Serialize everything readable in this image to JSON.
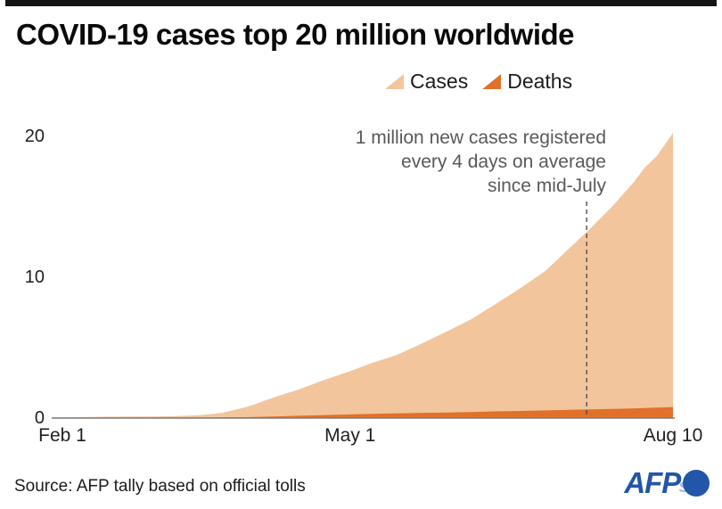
{
  "page": {
    "top_bar_color": "#141414",
    "background": "#ffffff"
  },
  "header": {
    "title": "COVID-19 cases top 20 million worldwide"
  },
  "annotation": {
    "lines": [
      "1 million new cases registered",
      "every 4 days on average",
      "since mid-July"
    ]
  },
  "footer": {
    "source": "Source: AFP tally based on official tolls"
  },
  "logo": {
    "text": "AFP",
    "ghost_text": "s",
    "color": "#2156a8"
  },
  "chart_data": {
    "type": "area",
    "title": "COVID-19 cases top 20 million worldwide",
    "y_unit": "millions",
    "x_unit": "days since Feb 1, 2020",
    "x": [
      0,
      7,
      14,
      21,
      29,
      36,
      43,
      50,
      57,
      60,
      67,
      74,
      81,
      90,
      97,
      104,
      111,
      121,
      128,
      135,
      142,
      151,
      158,
      165,
      172,
      179,
      182,
      186,
      191
    ],
    "series": [
      {
        "name": "Cases",
        "color": "#f2c59c",
        "values": [
          0.012,
          0.035,
          0.069,
          0.078,
          0.088,
          0.107,
          0.17,
          0.34,
          0.72,
          0.93,
          1.5,
          2.0,
          2.6,
          3.3,
          3.9,
          4.4,
          5.1,
          6.2,
          7.0,
          8.0,
          9.0,
          10.4,
          11.9,
          13.4,
          15.0,
          16.8,
          17.7,
          18.6,
          20.2
        ]
      },
      {
        "name": "Deaths",
        "color": "#e1702a",
        "values": [
          0.0,
          0.001,
          0.002,
          0.002,
          0.003,
          0.004,
          0.007,
          0.015,
          0.034,
          0.047,
          0.088,
          0.13,
          0.18,
          0.23,
          0.27,
          0.3,
          0.33,
          0.37,
          0.4,
          0.44,
          0.47,
          0.51,
          0.55,
          0.58,
          0.62,
          0.66,
          0.68,
          0.71,
          0.74
        ]
      }
    ],
    "xticks": [
      {
        "label": "Feb 1",
        "day": 0
      },
      {
        "label": "May 1",
        "day": 90
      },
      {
        "label": "Aug 10",
        "day": 191
      }
    ],
    "yticks": [
      {
        "label": "0",
        "value": 0
      },
      {
        "label": "10",
        "value": 10
      },
      {
        "label": "20",
        "value": 20
      }
    ],
    "ylim": [
      0,
      20
    ],
    "xlim_days": [
      0,
      191
    ],
    "grid": false,
    "legend_position": "top-right",
    "annotation_day": 164,
    "axis_color": "#7d7d7d",
    "dashed_line_color": "#4d4d4d"
  }
}
